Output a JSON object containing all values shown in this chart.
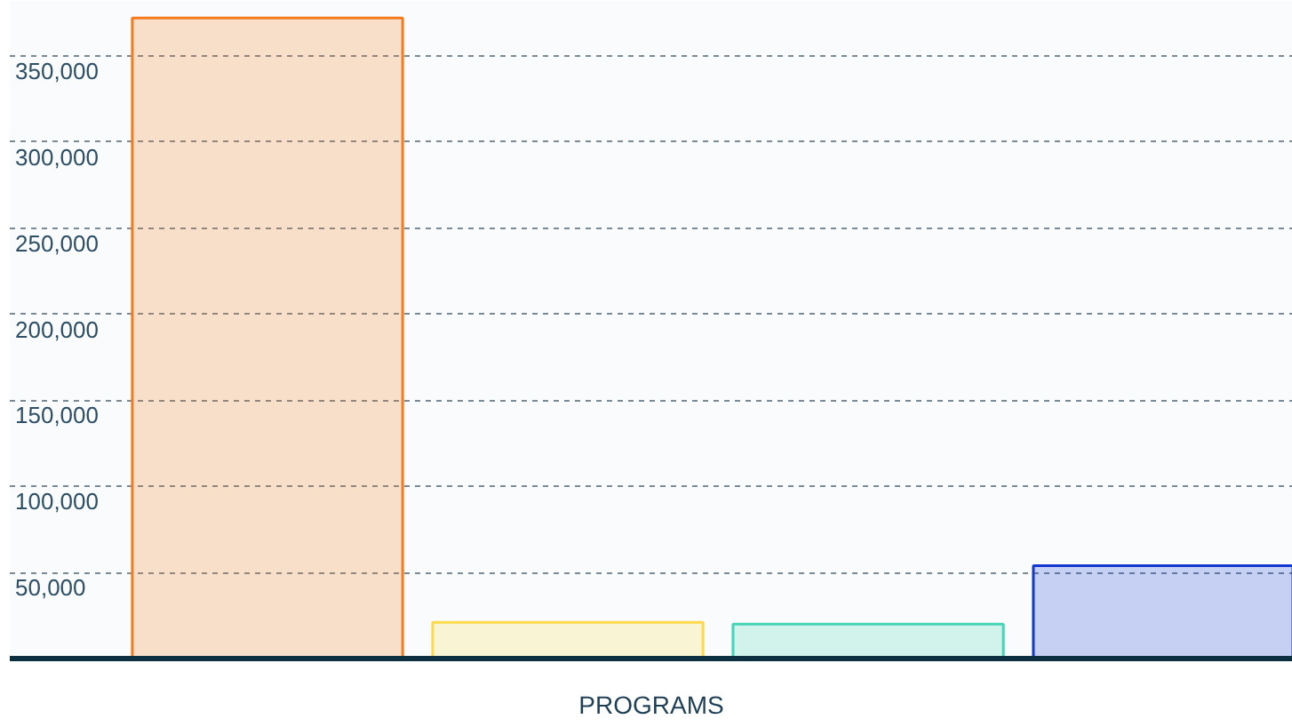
{
  "chart_data": {
    "type": "bar",
    "xlabel": "PROGRAMS",
    "categories": [
      null,
      null,
      null,
      null
    ],
    "values": [
      372000,
      21000,
      20000,
      54000
    ],
    "colors": [
      "#f57a1c",
      "#fcd94a",
      "#44d4b6",
      "#1238d0"
    ],
    "ylim": [
      0,
      382000
    ],
    "yticks": [
      {
        "value": 0,
        "label": null
      },
      {
        "value": 50000,
        "label": "50,000"
      },
      {
        "value": 100000,
        "label": "100,000"
      },
      {
        "value": 150000,
        "label": "150,000"
      },
      {
        "value": 200000,
        "label": "200,000"
      },
      {
        "value": 250000,
        "label": "250,000"
      },
      {
        "value": 300000,
        "label": "300,000"
      },
      {
        "value": 350000,
        "label": "350,000"
      }
    ],
    "grid": "y"
  }
}
